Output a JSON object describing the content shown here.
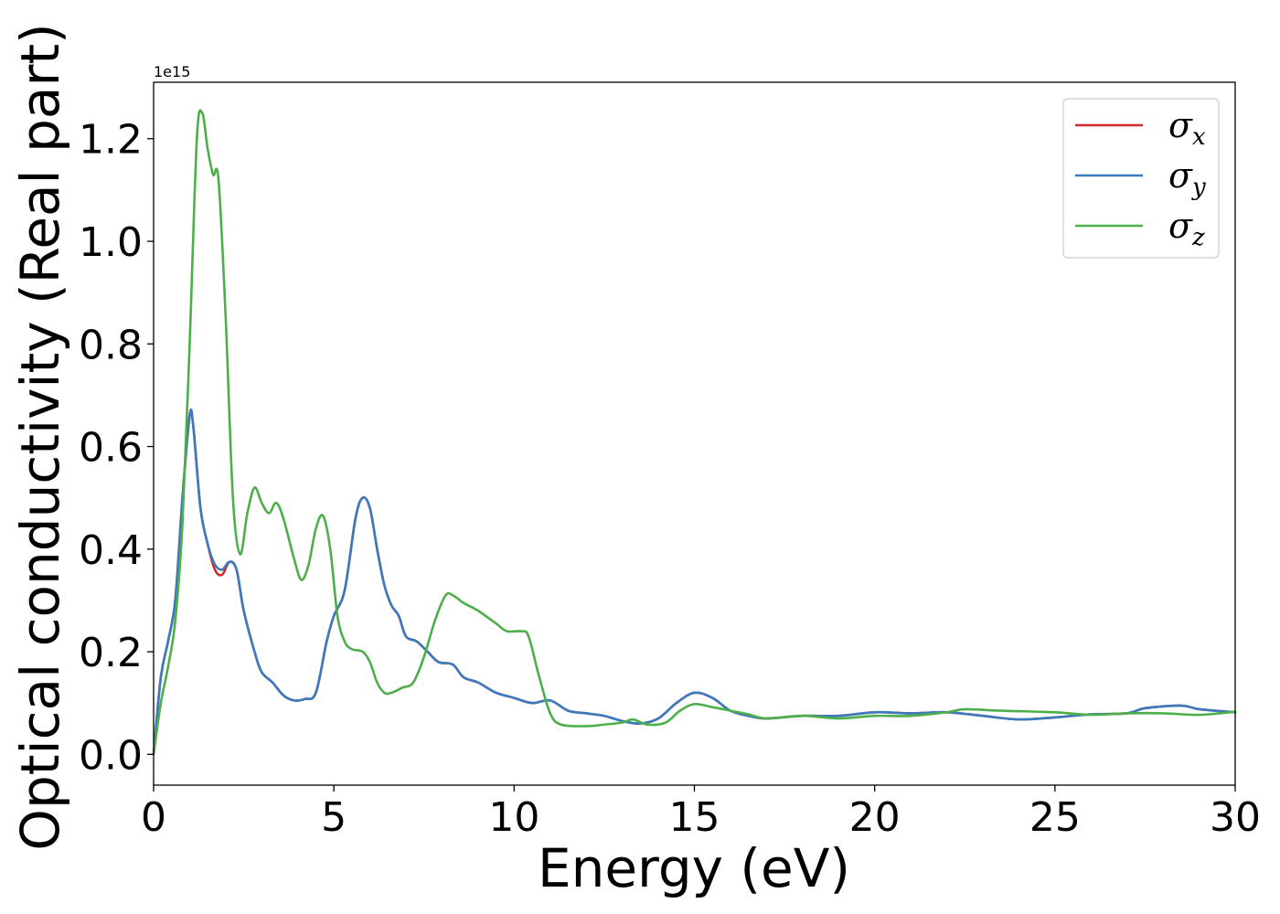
{
  "chart_data": {
    "type": "line",
    "xlabel": "Energy (eV)",
    "ylabel": "Optical conductivity (Real part)",
    "y_offset_text": "1e15",
    "xlim": [
      0,
      30
    ],
    "ylim": [
      -0.06,
      1.31
    ],
    "x_ticks": [
      0,
      5,
      10,
      15,
      20,
      25,
      30
    ],
    "x_tick_labels": [
      "0",
      "5",
      "10",
      "15",
      "20",
      "25",
      "30"
    ],
    "y_ticks": [
      0.0,
      0.2,
      0.4,
      0.6,
      0.8,
      1.0,
      1.2
    ],
    "y_tick_labels": [
      "0.0",
      "0.2",
      "0.4",
      "0.6",
      "0.8",
      "1.0",
      "1.2"
    ],
    "grid": false,
    "legend_position": "top-right",
    "series": [
      {
        "name": "σx",
        "legend_base": "σ",
        "legend_sub": "x",
        "color": "#d62728",
        "points": [
          [
            0,
            0.0
          ],
          [
            0.2,
            0.15
          ],
          [
            0.4,
            0.22
          ],
          [
            0.6,
            0.3
          ],
          [
            0.8,
            0.5
          ],
          [
            1.0,
            0.66
          ],
          [
            1.1,
            0.64
          ],
          [
            1.3,
            0.48
          ],
          [
            1.5,
            0.41
          ],
          [
            1.7,
            0.36
          ],
          [
            1.9,
            0.35
          ],
          [
            2.1,
            0.375
          ],
          [
            2.3,
            0.36
          ],
          [
            2.5,
            0.28
          ],
          [
            2.8,
            0.2
          ],
          [
            3.0,
            0.16
          ],
          [
            3.3,
            0.14
          ],
          [
            3.6,
            0.115
          ],
          [
            3.9,
            0.105
          ],
          [
            4.2,
            0.108
          ],
          [
            4.5,
            0.12
          ],
          [
            4.8,
            0.22
          ],
          [
            5.0,
            0.27
          ],
          [
            5.3,
            0.32
          ],
          [
            5.6,
            0.46
          ],
          [
            5.8,
            0.5
          ],
          [
            6.0,
            0.48
          ],
          [
            6.2,
            0.4
          ],
          [
            6.4,
            0.33
          ],
          [
            6.6,
            0.29
          ],
          [
            6.8,
            0.27
          ],
          [
            7.0,
            0.23
          ],
          [
            7.3,
            0.22
          ],
          [
            7.6,
            0.2
          ],
          [
            7.9,
            0.18
          ],
          [
            8.3,
            0.175
          ],
          [
            8.6,
            0.15
          ],
          [
            9.0,
            0.14
          ],
          [
            9.5,
            0.12
          ],
          [
            10.0,
            0.11
          ],
          [
            10.5,
            0.1
          ],
          [
            11.0,
            0.105
          ],
          [
            11.5,
            0.085
          ],
          [
            12.0,
            0.08
          ],
          [
            12.5,
            0.075
          ],
          [
            13.0,
            0.065
          ],
          [
            13.5,
            0.06
          ],
          [
            14.0,
            0.07
          ],
          [
            14.5,
            0.1
          ],
          [
            15.0,
            0.12
          ],
          [
            15.5,
            0.11
          ],
          [
            16.0,
            0.085
          ],
          [
            16.5,
            0.075
          ],
          [
            17.0,
            0.07
          ],
          [
            18.0,
            0.075
          ],
          [
            19.0,
            0.075
          ],
          [
            20.0,
            0.082
          ],
          [
            21.0,
            0.08
          ],
          [
            22.0,
            0.082
          ],
          [
            23.0,
            0.075
          ],
          [
            24.0,
            0.068
          ],
          [
            25.0,
            0.072
          ],
          [
            26.0,
            0.078
          ],
          [
            27.0,
            0.08
          ],
          [
            27.5,
            0.09
          ],
          [
            28.5,
            0.095
          ],
          [
            29.0,
            0.088
          ],
          [
            30.0,
            0.082
          ]
        ]
      },
      {
        "name": "σy",
        "legend_base": "σ",
        "legend_sub": "y",
        "color": "#3a7bbf",
        "points": [
          [
            0,
            0.0
          ],
          [
            0.2,
            0.15
          ],
          [
            0.4,
            0.22
          ],
          [
            0.6,
            0.3
          ],
          [
            0.8,
            0.5
          ],
          [
            1.0,
            0.66
          ],
          [
            1.1,
            0.64
          ],
          [
            1.3,
            0.48
          ],
          [
            1.5,
            0.41
          ],
          [
            1.7,
            0.37
          ],
          [
            1.9,
            0.36
          ],
          [
            2.1,
            0.375
          ],
          [
            2.3,
            0.36
          ],
          [
            2.5,
            0.28
          ],
          [
            2.8,
            0.2
          ],
          [
            3.0,
            0.16
          ],
          [
            3.3,
            0.14
          ],
          [
            3.6,
            0.115
          ],
          [
            3.9,
            0.105
          ],
          [
            4.2,
            0.108
          ],
          [
            4.5,
            0.12
          ],
          [
            4.8,
            0.22
          ],
          [
            5.0,
            0.27
          ],
          [
            5.3,
            0.32
          ],
          [
            5.6,
            0.46
          ],
          [
            5.8,
            0.5
          ],
          [
            6.0,
            0.48
          ],
          [
            6.2,
            0.4
          ],
          [
            6.4,
            0.33
          ],
          [
            6.6,
            0.29
          ],
          [
            6.8,
            0.27
          ],
          [
            7.0,
            0.23
          ],
          [
            7.3,
            0.22
          ],
          [
            7.6,
            0.2
          ],
          [
            7.9,
            0.18
          ],
          [
            8.3,
            0.175
          ],
          [
            8.6,
            0.15
          ],
          [
            9.0,
            0.14
          ],
          [
            9.5,
            0.12
          ],
          [
            10.0,
            0.11
          ],
          [
            10.5,
            0.1
          ],
          [
            11.0,
            0.105
          ],
          [
            11.5,
            0.085
          ],
          [
            12.0,
            0.08
          ],
          [
            12.5,
            0.075
          ],
          [
            13.0,
            0.065
          ],
          [
            13.5,
            0.06
          ],
          [
            14.0,
            0.07
          ],
          [
            14.5,
            0.1
          ],
          [
            15.0,
            0.12
          ],
          [
            15.5,
            0.11
          ],
          [
            16.0,
            0.085
          ],
          [
            16.5,
            0.075
          ],
          [
            17.0,
            0.07
          ],
          [
            18.0,
            0.075
          ],
          [
            19.0,
            0.075
          ],
          [
            20.0,
            0.082
          ],
          [
            21.0,
            0.08
          ],
          [
            22.0,
            0.082
          ],
          [
            23.0,
            0.075
          ],
          [
            24.0,
            0.068
          ],
          [
            25.0,
            0.072
          ],
          [
            26.0,
            0.078
          ],
          [
            27.0,
            0.08
          ],
          [
            27.5,
            0.09
          ],
          [
            28.5,
            0.095
          ],
          [
            29.0,
            0.088
          ],
          [
            30.0,
            0.082
          ]
        ]
      },
      {
        "name": "σz",
        "legend_base": "σ",
        "legend_sub": "z",
        "color": "#4daf4a",
        "points": [
          [
            0,
            0.0
          ],
          [
            0.2,
            0.1
          ],
          [
            0.4,
            0.17
          ],
          [
            0.6,
            0.26
          ],
          [
            0.8,
            0.45
          ],
          [
            1.0,
            0.8
          ],
          [
            1.2,
            1.2
          ],
          [
            1.35,
            1.25
          ],
          [
            1.5,
            1.18
          ],
          [
            1.65,
            1.13
          ],
          [
            1.8,
            1.12
          ],
          [
            2.0,
            0.85
          ],
          [
            2.2,
            0.5
          ],
          [
            2.4,
            0.39
          ],
          [
            2.6,
            0.47
          ],
          [
            2.8,
            0.52
          ],
          [
            3.0,
            0.49
          ],
          [
            3.2,
            0.47
          ],
          [
            3.4,
            0.49
          ],
          [
            3.6,
            0.46
          ],
          [
            3.9,
            0.38
          ],
          [
            4.1,
            0.34
          ],
          [
            4.3,
            0.37
          ],
          [
            4.5,
            0.44
          ],
          [
            4.7,
            0.465
          ],
          [
            4.9,
            0.4
          ],
          [
            5.1,
            0.27
          ],
          [
            5.3,
            0.22
          ],
          [
            5.5,
            0.205
          ],
          [
            5.8,
            0.2
          ],
          [
            6.0,
            0.18
          ],
          [
            6.2,
            0.14
          ],
          [
            6.4,
            0.12
          ],
          [
            6.6,
            0.12
          ],
          [
            6.9,
            0.13
          ],
          [
            7.2,
            0.14
          ],
          [
            7.5,
            0.19
          ],
          [
            7.8,
            0.26
          ],
          [
            8.1,
            0.31
          ],
          [
            8.3,
            0.31
          ],
          [
            8.6,
            0.295
          ],
          [
            9.0,
            0.28
          ],
          [
            9.5,
            0.255
          ],
          [
            9.8,
            0.24
          ],
          [
            10.2,
            0.24
          ],
          [
            10.4,
            0.23
          ],
          [
            10.7,
            0.15
          ],
          [
            11.0,
            0.08
          ],
          [
            11.3,
            0.058
          ],
          [
            12.0,
            0.055
          ],
          [
            12.5,
            0.058
          ],
          [
            13.0,
            0.062
          ],
          [
            13.3,
            0.068
          ],
          [
            13.7,
            0.058
          ],
          [
            14.2,
            0.062
          ],
          [
            14.6,
            0.085
          ],
          [
            15.0,
            0.098
          ],
          [
            15.5,
            0.092
          ],
          [
            16.0,
            0.085
          ],
          [
            16.5,
            0.078
          ],
          [
            17.0,
            0.07
          ],
          [
            18.0,
            0.075
          ],
          [
            19.0,
            0.07
          ],
          [
            20.0,
            0.075
          ],
          [
            21.0,
            0.075
          ],
          [
            22.0,
            0.082
          ],
          [
            22.5,
            0.088
          ],
          [
            23.5,
            0.085
          ],
          [
            25.0,
            0.082
          ],
          [
            26.0,
            0.077
          ],
          [
            27.0,
            0.08
          ],
          [
            28.0,
            0.08
          ],
          [
            29.0,
            0.077
          ],
          [
            30.0,
            0.083
          ]
        ]
      }
    ]
  }
}
